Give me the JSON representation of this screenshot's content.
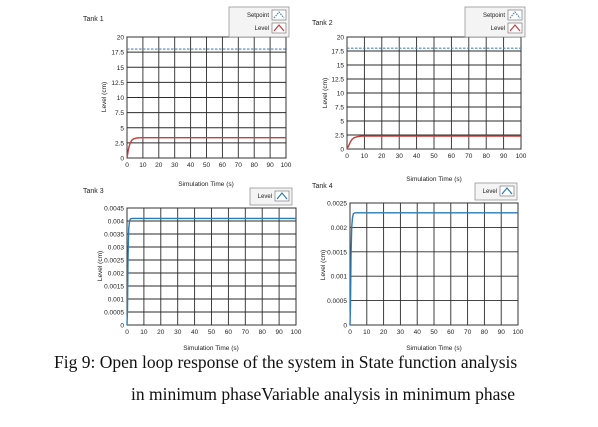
{
  "figure": {
    "caption_line1": "Fig 9: Open loop response of the system in State function analysis",
    "caption_line2": "in minimum phaseVariable analysis in minimum phase"
  },
  "chart_data": [
    {
      "type": "line",
      "title": "Tank 1",
      "xlabel": "Simulation Time (s)",
      "ylabel": "Level (cm)",
      "xlim": [
        0,
        100
      ],
      "ylim": [
        0,
        20
      ],
      "xticks": [
        "0",
        "10",
        "20",
        "30",
        "40",
        "50",
        "60",
        "70",
        "80",
        "90",
        "100"
      ],
      "yticks": [
        "0",
        "2.5",
        "5",
        "7.5",
        "10",
        "12.5",
        "15",
        "17.5",
        "20"
      ],
      "grid": true,
      "legend_placement": "top-right",
      "legend": [
        "Setpoint",
        "Level"
      ],
      "series": [
        {
          "name": "Setpoint",
          "color": "#4a86c8",
          "style": "dashed",
          "x": [
            0,
            100
          ],
          "y": [
            18,
            18
          ]
        },
        {
          "name": "Level",
          "color": "#c83c3c",
          "style": "solid",
          "x": [
            0,
            1,
            2,
            3,
            4,
            6,
            8,
            10,
            15,
            100
          ],
          "y": [
            0,
            1.6,
            2.5,
            2.95,
            3.15,
            3.3,
            3.34,
            3.35,
            3.35,
            3.35
          ]
        }
      ]
    },
    {
      "type": "line",
      "title": "Tank 2",
      "xlabel": "Simulation Time (s)",
      "ylabel": "Level (cm)",
      "xlim": [
        0,
        100
      ],
      "ylim": [
        0,
        20
      ],
      "xticks": [
        "0",
        "10",
        "20",
        "30",
        "40",
        "50",
        "60",
        "70",
        "80",
        "90",
        "100"
      ],
      "yticks": [
        "0",
        "2.5",
        "5",
        "7.5",
        "10",
        "12.5",
        "15",
        "17.5",
        "20"
      ],
      "grid": true,
      "legend_placement": "top-right",
      "legend": [
        "Setpoint",
        "Level"
      ],
      "series": [
        {
          "name": "Setpoint",
          "color": "#4a86c8",
          "style": "dashed",
          "x": [
            0,
            100
          ],
          "y": [
            18,
            18
          ]
        },
        {
          "name": "Level",
          "color": "#c83c3c",
          "style": "solid",
          "x": [
            0,
            1,
            2,
            3,
            4,
            6,
            8,
            10,
            15,
            100
          ],
          "y": [
            0,
            0.6,
            1.3,
            1.75,
            2.0,
            2.2,
            2.28,
            2.3,
            2.3,
            2.3
          ]
        }
      ]
    },
    {
      "type": "line",
      "title": "Tank 3",
      "xlabel": "Simulation Time (s)",
      "ylabel": "Level (cm)",
      "xlim": [
        0,
        100
      ],
      "ylim": [
        0,
        0.0045
      ],
      "xticks": [
        "0",
        "10",
        "20",
        "30",
        "40",
        "50",
        "60",
        "70",
        "80",
        "90",
        "100"
      ],
      "yticks": [
        "0",
        "0.0005",
        "0.001",
        "0.0015",
        "0.002",
        "0.0025",
        "0.003",
        "0.0035",
        "0.004",
        "0.0045"
      ],
      "grid": true,
      "legend_placement": "top-right",
      "legend": [
        "Level"
      ],
      "series": [
        {
          "name": "Level",
          "color": "#2a7bb6",
          "style": "solid",
          "x": [
            0,
            0.3,
            0.6,
            1,
            1.5,
            2,
            3,
            5,
            100
          ],
          "y": [
            0,
            0.0006,
            0.0025,
            0.0037,
            0.004,
            0.00408,
            0.0041,
            0.0041,
            0.0041
          ]
        }
      ]
    },
    {
      "type": "line",
      "title": "Tank 4",
      "xlabel": "Simulation Time (s)",
      "ylabel": "Level (cm)",
      "xlim": [
        0,
        100
      ],
      "ylim": [
        0,
        0.0025
      ],
      "xticks": [
        "0",
        "10",
        "20",
        "30",
        "40",
        "50",
        "60",
        "70",
        "80",
        "90",
        "100"
      ],
      "yticks": [
        "0",
        "0.0005",
        "0.001",
        "0.0015",
        "0.002",
        "0.0025"
      ],
      "grid": true,
      "legend_placement": "top-right",
      "legend": [
        "Level"
      ],
      "series": [
        {
          "name": "Level",
          "color": "#2a7bb6",
          "style": "solid",
          "x": [
            0,
            0.3,
            0.6,
            1,
            1.5,
            2,
            3,
            5,
            100
          ],
          "y": [
            0,
            0.0004,
            0.0014,
            0.002,
            0.0022,
            0.00228,
            0.0023,
            0.0023,
            0.0023
          ]
        }
      ]
    }
  ]
}
